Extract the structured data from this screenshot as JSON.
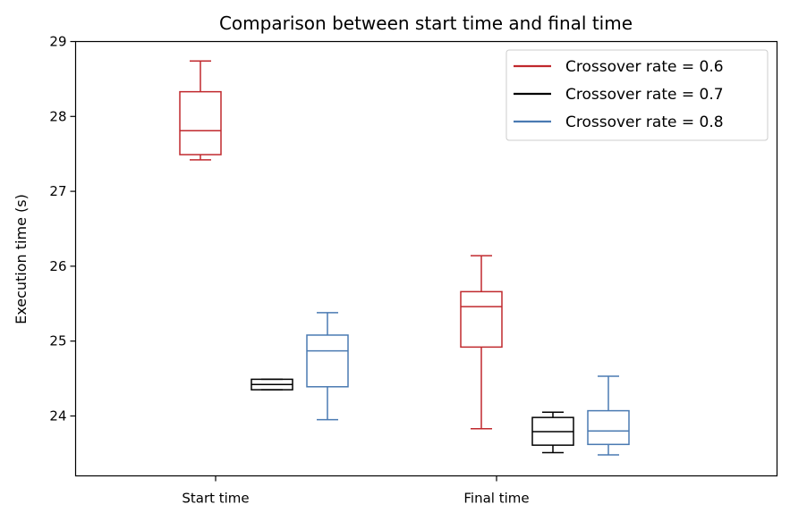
{
  "chart_data": {
    "type": "box",
    "title": "Comparison between start time and final time",
    "xlabel": "",
    "ylabel": "Execution time (s)",
    "categories": [
      "Start time",
      "Final time"
    ],
    "ylim": [
      23.2,
      29.0
    ],
    "yticks": [
      24,
      25,
      26,
      27,
      28,
      29
    ],
    "grid": false,
    "legend_position": "top-right",
    "series": [
      {
        "name": "Crossover rate = 0.6",
        "color": "#c0282d",
        "boxes": [
          {
            "whislo": 27.42,
            "q1": 27.49,
            "med": 27.81,
            "q3": 28.33,
            "whishi": 28.74
          },
          {
            "whislo": 23.83,
            "q1": 24.92,
            "med": 25.46,
            "q3": 25.66,
            "whishi": 26.14
          }
        ]
      },
      {
        "name": "Crossover rate = 0.7",
        "color": "#000000",
        "boxes": [
          {
            "whislo": 24.35,
            "q1": 24.35,
            "med": 24.42,
            "q3": 24.49,
            "whishi": 24.49
          },
          {
            "whislo": 23.51,
            "q1": 23.61,
            "med": 23.79,
            "q3": 23.98,
            "whishi": 24.05
          }
        ]
      },
      {
        "name": "Crossover rate = 0.8",
        "color": "#4a7ab2",
        "boxes": [
          {
            "whislo": 23.95,
            "q1": 24.39,
            "med": 24.87,
            "q3": 25.08,
            "whishi": 25.38
          },
          {
            "whislo": 23.48,
            "q1": 23.62,
            "med": 23.8,
            "q3": 24.07,
            "whishi": 24.53
          }
        ]
      }
    ]
  }
}
